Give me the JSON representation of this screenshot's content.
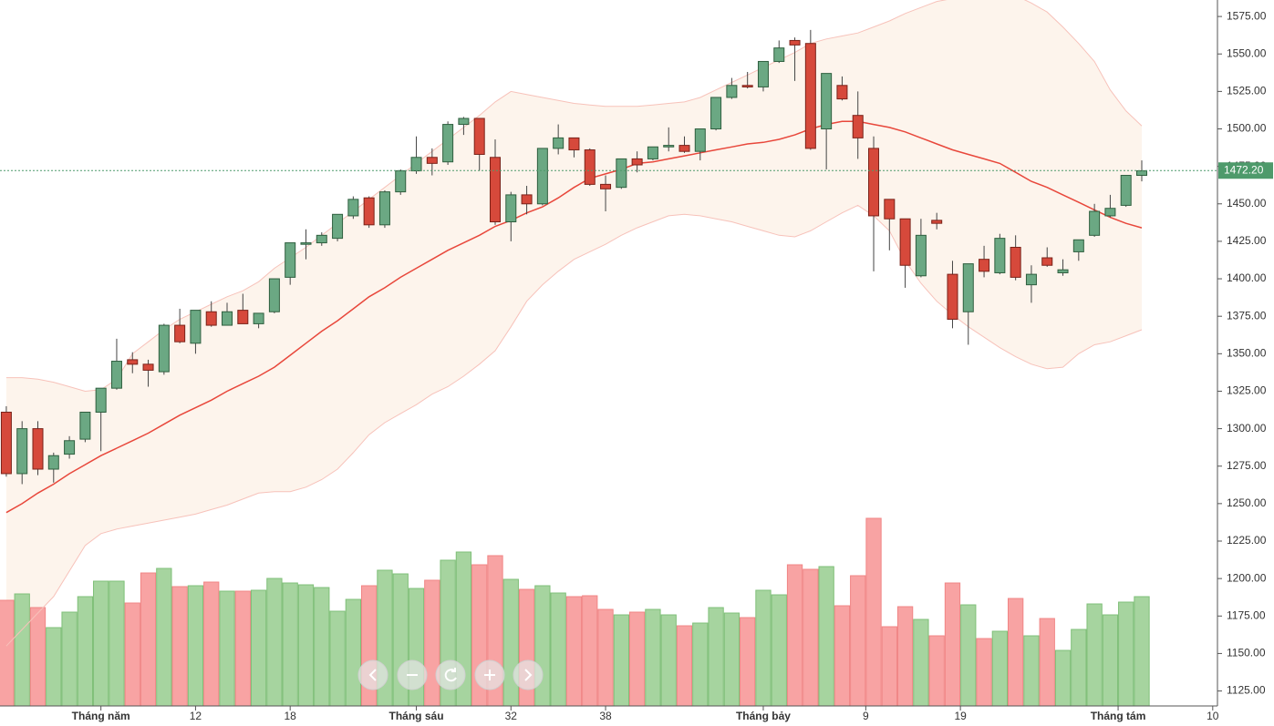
{
  "chart_data": {
    "type": "candlestick",
    "up_color": "#6ba883",
    "up_edge": "#2f5f3f",
    "down_color": "#d6493b",
    "down_edge": "#7a2219",
    "volume_up_color": "#a6d49f",
    "volume_down_color": "#f8a3a3",
    "xlim": [
      -0.4,
      76.8
    ],
    "xticks": [
      {
        "value": 6,
        "label": "Tháng năm"
      },
      12,
      18,
      {
        "value": 26,
        "label": "Tháng sáu"
      },
      32,
      38,
      {
        "value": 48,
        "label": "Tháng bảy"
      },
      {
        "value": 54.5,
        "label": "9"
      },
      {
        "value": 60.5,
        "label": "19"
      },
      {
        "value": 70.5,
        "label": "Tháng tám"
      },
      {
        "value": 76.5,
        "label": "10"
      }
    ],
    "ylim": [
      1115,
      1586
    ],
    "yticks": [
      {
        "value": 1125,
        "label": "1125.00"
      },
      {
        "value": 1150,
        "label": "1150.00"
      },
      {
        "value": 1175,
        "label": "1175.00"
      },
      {
        "value": 1200,
        "label": "1200.00"
      },
      {
        "value": 1225,
        "label": "1225.00"
      },
      {
        "value": 1250,
        "label": "1250.00"
      },
      {
        "value": 1275,
        "label": "1275.00"
      },
      {
        "value": 1300,
        "label": "1300.00"
      },
      {
        "value": 1325,
        "label": "1325.00"
      },
      {
        "value": 1350,
        "label": "1350.00"
      },
      {
        "value": 1375,
        "label": "1375.00"
      },
      {
        "value": 1400,
        "label": "1400.00"
      },
      {
        "value": 1425,
        "label": "1425.00"
      },
      {
        "value": 1450,
        "label": "1450.00"
      },
      {
        "value": 1475,
        "label": "1475.00"
      },
      {
        "value": 1500,
        "label": "1500.00"
      },
      {
        "value": 1525,
        "label": "1525.00"
      },
      {
        "value": 1550,
        "label": "1550.00"
      },
      {
        "value": 1575,
        "label": "1575.00"
      }
    ],
    "last_price": {
      "value": 1472.2,
      "label": "1472.20",
      "color": "#4e9a6b"
    },
    "open": [
      1311,
      1270,
      1300,
      1273,
      1283,
      1293,
      1311,
      1327,
      1346,
      1343,
      1338,
      1369,
      1357,
      1378,
      1369,
      1379,
      1370,
      1378,
      1401,
      1423,
      1424,
      1427,
      1442,
      1454,
      1436,
      1458,
      1472,
      1481,
      1478,
      1503,
      1507,
      1481,
      1438,
      1456,
      1450,
      1487,
      1494,
      1486,
      1463,
      1461,
      1480,
      1480,
      1488,
      1489,
      1485,
      1500,
      1521,
      1529,
      1528,
      1545,
      1559,
      1557,
      1500,
      1529,
      1509,
      1487,
      1453,
      1440,
      1402,
      1439,
      1403,
      1378,
      1413,
      1404,
      1421,
      1396,
      1414,
      1404,
      1418,
      1429,
      1442,
      1449,
      1469
    ],
    "high": [
      1315,
      1305,
      1305,
      1284,
      1295,
      1311,
      1327,
      1360,
      1351,
      1346,
      1370,
      1380,
      1379,
      1385,
      1384,
      1390,
      1377,
      1400,
      1424,
      1433,
      1431,
      1443,
      1455,
      1455,
      1459,
      1473,
      1495,
      1487,
      1505,
      1508,
      1507,
      1493,
      1458,
      1462,
      1487,
      1503,
      1494,
      1487,
      1469,
      1480,
      1485,
      1488,
      1501,
      1495,
      1500,
      1521,
      1534,
      1538,
      1545,
      1559,
      1561,
      1566,
      1537,
      1535,
      1525,
      1495,
      1453,
      1440,
      1440,
      1444,
      1412,
      1410,
      1422,
      1430,
      1429,
      1409,
      1421,
      1413,
      1426,
      1450,
      1456,
      1469,
      1479
    ],
    "low": [
      1268,
      1263,
      1269,
      1264,
      1280,
      1291,
      1285,
      1326,
      1337,
      1328,
      1336,
      1357,
      1350,
      1368,
      1369,
      1370,
      1367,
      1377,
      1396,
      1413,
      1422,
      1425,
      1440,
      1434,
      1434,
      1456,
      1470,
      1469,
      1476,
      1496,
      1472,
      1436,
      1425,
      1443,
      1449,
      1483,
      1481,
      1462,
      1445,
      1460,
      1471,
      1479,
      1485,
      1484,
      1479,
      1499,
      1520,
      1527,
      1525,
      1544,
      1532,
      1486,
      1473,
      1519,
      1480,
      1405,
      1419,
      1394,
      1401,
      1433,
      1367,
      1356,
      1401,
      1403,
      1399,
      1384,
      1408,
      1402,
      1412,
      1428,
      1441,
      1448,
      1465
    ],
    "close": [
      1270,
      1300,
      1273,
      1282,
      1292,
      1311,
      1327,
      1345,
      1343,
      1339,
      1369,
      1358,
      1379,
      1369,
      1378,
      1370,
      1377,
      1400,
      1424,
      1424,
      1429,
      1443,
      1453,
      1436,
      1458,
      1472,
      1481,
      1477,
      1503,
      1507,
      1483,
      1438,
      1456,
      1450,
      1487,
      1494,
      1486,
      1463,
      1460,
      1480,
      1476,
      1488,
      1489,
      1485,
      1500,
      1521,
      1529,
      1528,
      1545,
      1554,
      1556,
      1487,
      1537,
      1520,
      1494,
      1442,
      1440,
      1409,
      1429,
      1437,
      1373,
      1410,
      1405,
      1427,
      1401,
      1403,
      1409,
      1406,
      1426,
      1445,
      1447,
      1469,
      1472
    ],
    "volume": [
      116,
      123,
      108,
      86,
      103,
      120,
      137,
      137,
      113,
      146,
      151,
      131,
      132,
      136,
      126,
      126,
      127,
      140,
      135,
      133,
      130,
      104,
      117,
      132,
      149,
      145,
      129,
      138,
      160,
      169,
      155,
      165,
      139,
      128,
      132,
      124,
      120,
      121,
      106,
      100,
      103,
      106,
      100,
      88,
      91,
      108,
      102,
      97,
      127,
      122,
      155,
      150,
      153,
      110,
      143,
      206,
      87,
      109,
      95,
      77,
      135,
      111,
      74,
      82,
      118,
      77,
      96,
      61,
      84,
      112,
      100,
      114,
      120
    ],
    "ma": {
      "color": "#e8473b",
      "values": [
        1244,
        1250,
        1257,
        1263,
        1270,
        1276,
        1282,
        1287,
        1292,
        1297,
        1303,
        1309,
        1314,
        1319,
        1325,
        1330,
        1335,
        1341,
        1349,
        1357,
        1365,
        1372,
        1380,
        1388,
        1394,
        1401,
        1407,
        1413,
        1419,
        1424,
        1429,
        1435,
        1439,
        1444,
        1448,
        1454,
        1461,
        1467,
        1470,
        1473,
        1477,
        1478,
        1480,
        1482,
        1484,
        1486,
        1488,
        1490,
        1491,
        1493,
        1496,
        1500,
        1503,
        1505,
        1505,
        1503,
        1501,
        1498,
        1494,
        1490,
        1486,
        1483,
        1480,
        1477,
        1471,
        1465,
        1461,
        1456,
        1451,
        1446,
        1441,
        1437,
        1434
      ]
    },
    "upper_band": {
      "color": "#f7c2ba",
      "values": [
        1334,
        1334,
        1333,
        1331,
        1328,
        1325,
        1326,
        1333,
        1350,
        1358,
        1366,
        1373,
        1378,
        1383,
        1388,
        1392,
        1398,
        1407,
        1414,
        1421,
        1429,
        1437,
        1445,
        1453,
        1461,
        1469,
        1477,
        1485,
        1493,
        1501,
        1509,
        1518,
        1525,
        1523,
        1521,
        1519,
        1517,
        1516,
        1515,
        1515,
        1515,
        1516,
        1517,
        1518,
        1521,
        1526,
        1531,
        1536,
        1541,
        1546,
        1551,
        1557,
        1560,
        1562,
        1564,
        1568,
        1572,
        1577,
        1581,
        1585,
        1587,
        1589,
        1591,
        1592,
        1589,
        1584,
        1578,
        1568,
        1557,
        1545,
        1526,
        1512,
        1502
      ]
    },
    "lower_band": {
      "color": "#f7c2ba",
      "values": [
        1155,
        1166,
        1177,
        1188,
        1205,
        1222,
        1230,
        1233,
        1235,
        1237,
        1239,
        1241,
        1243,
        1246,
        1249,
        1253,
        1257,
        1258,
        1258,
        1261,
        1266,
        1273,
        1284,
        1296,
        1304,
        1310,
        1316,
        1323,
        1328,
        1335,
        1343,
        1352,
        1368,
        1385,
        1396,
        1405,
        1413,
        1418,
        1423,
        1429,
        1434,
        1438,
        1442,
        1443,
        1442,
        1440,
        1438,
        1435,
        1432,
        1429,
        1428,
        1432,
        1438,
        1444,
        1449,
        1442,
        1432,
        1412,
        1397,
        1385,
        1376,
        1368,
        1361,
        1354,
        1348,
        1343,
        1340,
        1341,
        1350,
        1356,
        1358,
        1362,
        1366
      ]
    },
    "band_fill": "#fdf4ec"
  }
}
